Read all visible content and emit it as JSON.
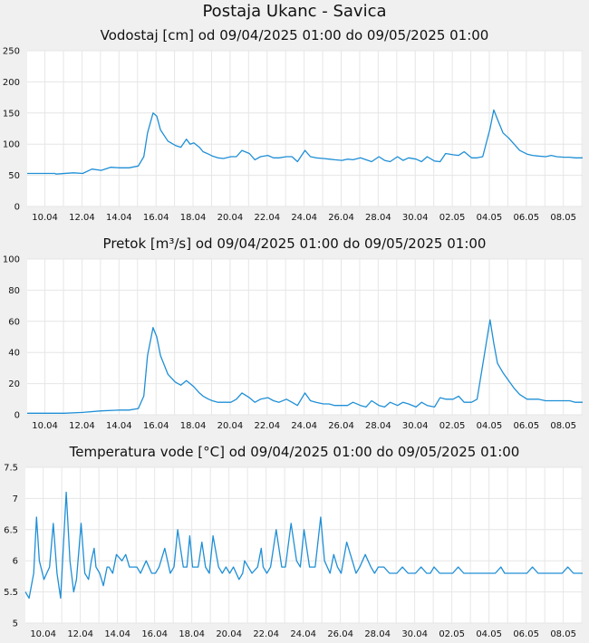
{
  "title": "Postaja Ukanc - Savica",
  "date_labels": [
    "10.04",
    "12.04",
    "14.04",
    "16.04",
    "18.04",
    "20.04",
    "22.04",
    "24.04",
    "26.04",
    "28.04",
    "30.04",
    "02.05",
    "04.05",
    "06.05",
    "08.05"
  ],
  "colors": {
    "line": "#1f8fd6",
    "plot_bg": "#ffffff",
    "page_bg": "#f0f0f0",
    "grid": "#e6e6e6"
  },
  "chart_data": [
    {
      "type": "line",
      "title": "Vodostaj [cm] od 09/04/2025 01:00 do 09/05/2025 01:00",
      "ylim": [
        0,
        250
      ],
      "yticks": [
        "0",
        "50",
        "100",
        "150",
        "200",
        "250"
      ],
      "x_start": "2025-04-09 01:00",
      "x_end": "2025-05-09 01:00",
      "grid": true,
      "series": [
        {
          "x": [
            0,
            1.5,
            1.55,
            2.5,
            3.0,
            3.5,
            4.0,
            4.5,
            5.0,
            5.5,
            6.0,
            6.3,
            6.5,
            6.8,
            7.0,
            7.2,
            7.6,
            8.0,
            8.3,
            8.6,
            8.8,
            9.0,
            9.3,
            9.5,
            9.8,
            10.0,
            10.3,
            10.6,
            11.0,
            11.3,
            11.6,
            12.0,
            12.3,
            12.6,
            13.0,
            13.3,
            13.6,
            14.0,
            14.3,
            14.6,
            15.0,
            15.3,
            15.6,
            16.0,
            16.3,
            16.6,
            17.0,
            17.3,
            17.6,
            18.0,
            18.3,
            18.6,
            19.0,
            19.3,
            19.6,
            20.0,
            20.3,
            20.6,
            21.0,
            21.3,
            21.6,
            22.0,
            22.3,
            22.6,
            23.0,
            23.3,
            23.6,
            24.0,
            24.3,
            24.6,
            25.0,
            25.2,
            25.4,
            25.7,
            26.0,
            26.3,
            26.6,
            27.0,
            27.3,
            27.6,
            28.0,
            28.3,
            28.6,
            29.0,
            29.3,
            29.6,
            30.0
          ],
          "values": [
            53,
            53,
            52,
            54,
            53,
            60,
            58,
            63,
            62,
            62,
            65,
            80,
            118,
            150,
            145,
            123,
            105,
            98,
            95,
            108,
            100,
            102,
            95,
            88,
            84,
            81,
            78,
            77,
            80,
            80,
            90,
            85,
            75,
            80,
            82,
            78,
            78,
            80,
            80,
            72,
            90,
            80,
            78,
            77,
            76,
            75,
            74,
            76,
            75,
            78,
            75,
            72,
            80,
            74,
            72,
            80,
            74,
            78,
            76,
            72,
            80,
            73,
            72,
            85,
            83,
            82,
            88,
            78,
            78,
            80,
            125,
            155,
            140,
            118,
            110,
            100,
            90,
            84,
            82,
            81,
            80,
            82,
            80,
            79,
            79,
            78,
            78
          ]
        }
      ]
    },
    {
      "type": "line",
      "title": "Pretok [m³/s] od 09/04/2025 01:00 do 09/05/2025 01:00",
      "ylim": [
        0,
        100
      ],
      "yticks": [
        "0",
        "20",
        "40",
        "60",
        "80",
        "100"
      ],
      "x_start": "2025-04-09 01:00",
      "x_end": "2025-05-09 01:00",
      "grid": true,
      "series": [
        {
          "x": [
            0,
            1.0,
            2.0,
            3.0,
            4.0,
            5.0,
            5.5,
            6.0,
            6.3,
            6.5,
            6.8,
            7.0,
            7.2,
            7.6,
            8.0,
            8.3,
            8.6,
            8.8,
            9.0,
            9.3,
            9.5,
            9.8,
            10.0,
            10.3,
            10.6,
            11.0,
            11.3,
            11.6,
            12.0,
            12.3,
            12.6,
            13.0,
            13.3,
            13.6,
            14.0,
            14.3,
            14.6,
            15.0,
            15.3,
            15.6,
            16.0,
            16.3,
            16.6,
            17.0,
            17.3,
            17.6,
            18.0,
            18.3,
            18.6,
            19.0,
            19.3,
            19.6,
            20.0,
            20.3,
            20.6,
            21.0,
            21.3,
            21.6,
            22.0,
            22.3,
            22.6,
            23.0,
            23.3,
            23.6,
            24.0,
            24.3,
            24.6,
            25.0,
            25.2,
            25.4,
            25.7,
            26.0,
            26.3,
            26.6,
            27.0,
            27.3,
            27.6,
            28.0,
            28.3,
            28.6,
            29.0,
            29.3,
            29.6,
            30.0
          ],
          "values": [
            1,
            1,
            1,
            1.5,
            2.5,
            3,
            3,
            4,
            12,
            38,
            56,
            50,
            38,
            26,
            21,
            19,
            22,
            20,
            18,
            14,
            12,
            10,
            9,
            8,
            8,
            8,
            10,
            14,
            11,
            8,
            10,
            11,
            9,
            8,
            10,
            8,
            6,
            14,
            9,
            8,
            7,
            7,
            6,
            6,
            6,
            8,
            6,
            5,
            9,
            6,
            5,
            8,
            6,
            8,
            7,
            5,
            8,
            6,
            5,
            11,
            10,
            10,
            12,
            8,
            8,
            10,
            32,
            61,
            46,
            33,
            27,
            22,
            17,
            13,
            10,
            10,
            10,
            9,
            9,
            9,
            9,
            9,
            8,
            8
          ]
        }
      ]
    },
    {
      "type": "line",
      "title": "Temperatura vode [°C] od 09/04/2025 01:00 do 09/05/2025 01:00",
      "ylim": [
        5,
        7.5
      ],
      "yticks": [
        "5",
        "5.5",
        "6",
        "6.5",
        "7",
        "7.5"
      ],
      "x_start": "2025-04-09 01:00",
      "x_end": "2025-05-09 01:00",
      "grid": true,
      "series": [
        {
          "x": [
            0,
            0.2,
            0.45,
            0.6,
            0.75,
            1.0,
            1.3,
            1.5,
            1.7,
            1.9,
            2.2,
            2.4,
            2.6,
            2.75,
            3.0,
            3.2,
            3.4,
            3.55,
            3.7,
            3.8,
            4.0,
            4.2,
            4.4,
            4.5,
            4.7,
            4.9,
            5.2,
            5.4,
            5.5,
            5.6,
            5.8,
            6.0,
            6.2,
            6.5,
            6.8,
            7.0,
            7.2,
            7.5,
            7.8,
            8.0,
            8.2,
            8.5,
            8.7,
            8.85,
            9.0,
            9.3,
            9.5,
            9.7,
            9.9,
            10.1,
            10.4,
            10.6,
            10.8,
            11.0,
            11.2,
            11.5,
            11.7,
            11.8,
            12.0,
            12.2,
            12.5,
            12.7,
            12.8,
            13.0,
            13.2,
            13.5,
            13.8,
            14.0,
            14.3,
            14.6,
            14.8,
            15.0,
            15.3,
            15.6,
            15.9,
            16.1,
            16.4,
            16.6,
            16.8,
            17.0,
            17.3,
            17.6,
            17.8,
            18.0,
            18.3,
            18.6,
            18.8,
            19.0,
            19.3,
            19.6,
            19.8,
            20.0,
            20.3,
            20.6,
            20.8,
            21.0,
            21.3,
            21.6,
            21.8,
            22.0,
            22.3,
            22.6,
            22.8,
            23.0,
            23.3,
            23.6,
            23.9,
            24.2,
            24.5,
            24.8,
            25.0,
            25.3,
            25.6,
            25.8,
            26.0,
            26.3,
            26.6,
            26.8,
            27.0,
            27.3,
            27.6,
            28.0,
            28.3,
            28.6,
            28.9,
            29.2,
            29.5,
            29.8,
            30.0
          ],
          "values": [
            5.5,
            5.4,
            5.8,
            6.7,
            6.0,
            5.7,
            5.9,
            6.6,
            5.8,
            5.4,
            7.1,
            6.0,
            5.5,
            5.7,
            6.6,
            5.8,
            5.7,
            6.0,
            6.2,
            5.9,
            5.8,
            5.6,
            5.9,
            5.9,
            5.8,
            6.1,
            6.0,
            6.1,
            6.0,
            5.9,
            5.9,
            5.9,
            5.8,
            6.0,
            5.8,
            5.8,
            5.9,
            6.2,
            5.8,
            5.9,
            6.5,
            5.9,
            5.9,
            6.4,
            5.9,
            5.9,
            6.3,
            5.9,
            5.8,
            6.4,
            5.9,
            5.8,
            5.9,
            5.8,
            5.9,
            5.7,
            5.8,
            6.0,
            5.9,
            5.8,
            5.9,
            6.2,
            5.9,
            5.8,
            5.9,
            6.5,
            5.9,
            5.9,
            6.6,
            6.0,
            5.9,
            6.5,
            5.9,
            5.9,
            6.7,
            6.0,
            5.8,
            6.1,
            5.9,
            5.8,
            6.3,
            6.0,
            5.8,
            5.9,
            6.1,
            5.9,
            5.8,
            5.9,
            5.9,
            5.8,
            5.8,
            5.8,
            5.9,
            5.8,
            5.8,
            5.8,
            5.9,
            5.8,
            5.8,
            5.9,
            5.8,
            5.8,
            5.8,
            5.8,
            5.9,
            5.8,
            5.8,
            5.8,
            5.8,
            5.8,
            5.8,
            5.8,
            5.9,
            5.8,
            5.8,
            5.8,
            5.8,
            5.8,
            5.8,
            5.9,
            5.8,
            5.8,
            5.8,
            5.8,
            5.8,
            5.9,
            5.8,
            5.8,
            5.8
          ]
        }
      ]
    }
  ]
}
